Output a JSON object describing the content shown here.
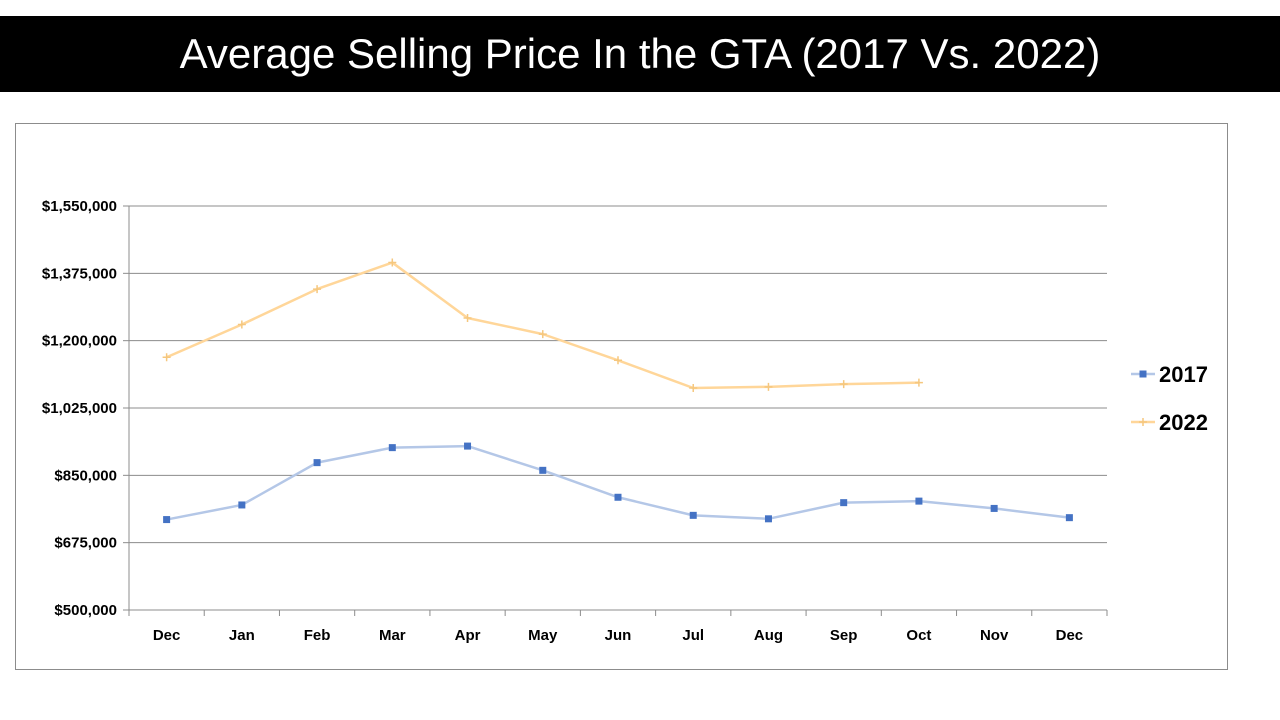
{
  "slide": {
    "title": "Average Selling Price In the GTA (2017 Vs. 2022)"
  },
  "chart_data": {
    "type": "line",
    "title": "",
    "xlabel": "",
    "ylabel": "",
    "categories": [
      "Dec",
      "Jan",
      "Feb",
      "Mar",
      "Apr",
      "May",
      "Jun",
      "Jul",
      "Aug",
      "Sep",
      "Oct",
      "Nov",
      "Dec"
    ],
    "y_ticks": [
      "$500,000",
      "$675,000",
      "$850,000",
      "$1,025,000",
      "$1,200,000",
      "$1,375,000",
      "$1,550,000"
    ],
    "y_tick_values": [
      500000,
      675000,
      850000,
      1025000,
      1200000,
      1375000,
      1550000
    ],
    "ylim": [
      500000,
      1550000
    ],
    "grid": true,
    "legend_position": "right",
    "series": [
      {
        "name": "2017",
        "color": "#b4c7e7",
        "marker_color": "#4472c4",
        "marker": "square",
        "values": [
          735000,
          773000,
          883000,
          922000,
          926000,
          863000,
          793000,
          746000,
          737000,
          779000,
          783000,
          764000,
          740000
        ]
      },
      {
        "name": "2022",
        "color": "#ffd699",
        "marker_color": "#f5c77e",
        "marker": "plus",
        "values": [
          1157000,
          1242000,
          1334000,
          1403000,
          1259000,
          1217000,
          1149000,
          1077000,
          1080000,
          1087000,
          1091000,
          null,
          null
        ]
      }
    ]
  }
}
